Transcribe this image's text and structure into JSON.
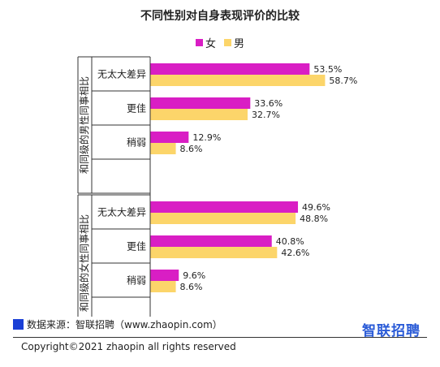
{
  "title": "不同性别对自身表现评价的比较",
  "legend": [
    {
      "name": "女",
      "color": "#d91ec4"
    },
    {
      "name": "男",
      "color": "#fcd56a"
    }
  ],
  "chart_data": {
    "type": "bar",
    "orientation": "horizontal",
    "groups": [
      {
        "label": "和同级的男性同事相比",
        "categories": [
          "无太大差异",
          "更佳",
          "稍弱"
        ]
      },
      {
        "label": "和同级的女性同事相比",
        "categories": [
          "无太大差异",
          "更佳",
          "稍弱"
        ]
      }
    ],
    "series": [
      {
        "name": "女",
        "color": "#d91ec4",
        "values": [
          53.5,
          33.6,
          12.9,
          49.6,
          40.8,
          9.6
        ]
      },
      {
        "name": "男",
        "color": "#fcd56a",
        "values": [
          58.7,
          32.7,
          8.6,
          48.8,
          42.6,
          8.6
        ]
      }
    ],
    "value_format": "%",
    "grid": false
  },
  "footer": {
    "source": "数据来源：智联招聘（www.zhaopin.com）",
    "logo": "智联招聘",
    "copyright": "Copyright©2021 zhaopin all rights reserved"
  }
}
